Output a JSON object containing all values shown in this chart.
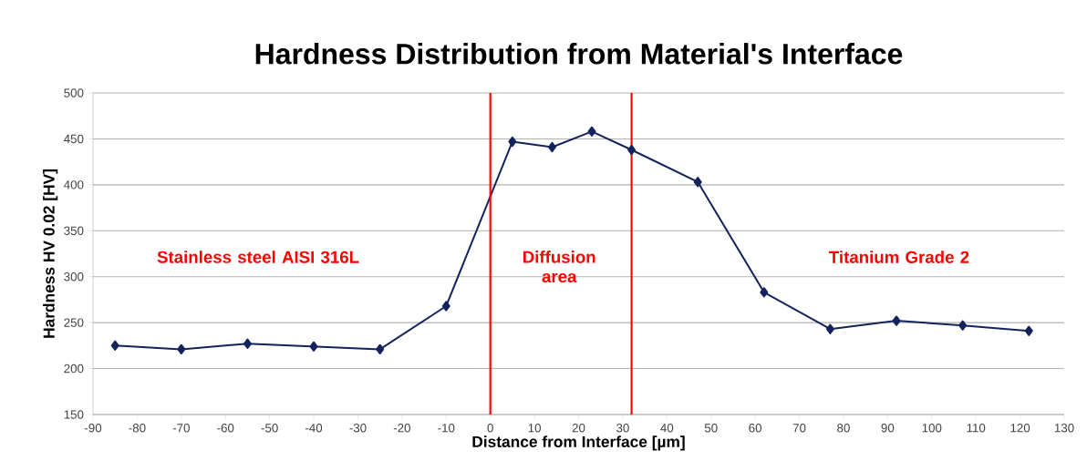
{
  "chart_data": {
    "type": "line",
    "title": "Hardness Distribution from Material's Interface",
    "xlabel": "Distance  from Interface   [µm]",
    "ylabel": "Hardness   HV 0.02   [HV]",
    "x": [
      -85,
      -70,
      -55,
      -40,
      -25,
      -10,
      5,
      14,
      23,
      32,
      47,
      62,
      77,
      92,
      107,
      122
    ],
    "series": [
      {
        "color": "#14235c",
        "values": [
          225,
          221,
          227,
          224,
          221,
          268,
          447,
          441,
          458,
          438,
          403,
          283,
          243,
          252,
          247,
          241
        ]
      }
    ],
    "xlim": [
      -90,
      130
    ],
    "xticks": [
      -90,
      -80,
      -70,
      -60,
      -50,
      -40,
      -30,
      -20,
      -10,
      0,
      10,
      20,
      30,
      40,
      50,
      60,
      70,
      80,
      90,
      100,
      110,
      120,
      130
    ],
    "ylim": [
      150,
      500
    ],
    "yticks": [
      150,
      200,
      250,
      300,
      350,
      400,
      450,
      500
    ],
    "ref_lines": [
      {
        "axis": "x",
        "value": 0,
        "color": "#ff0000"
      },
      {
        "axis": "x",
        "value": 32,
        "color": "#ff0000"
      }
    ],
    "annotations": [
      "Stainless steel AISI 316L",
      "Diffusion area",
      "Titanium Grade 2"
    ],
    "grid": "y",
    "marker": "diamond",
    "line_style": "solid"
  }
}
